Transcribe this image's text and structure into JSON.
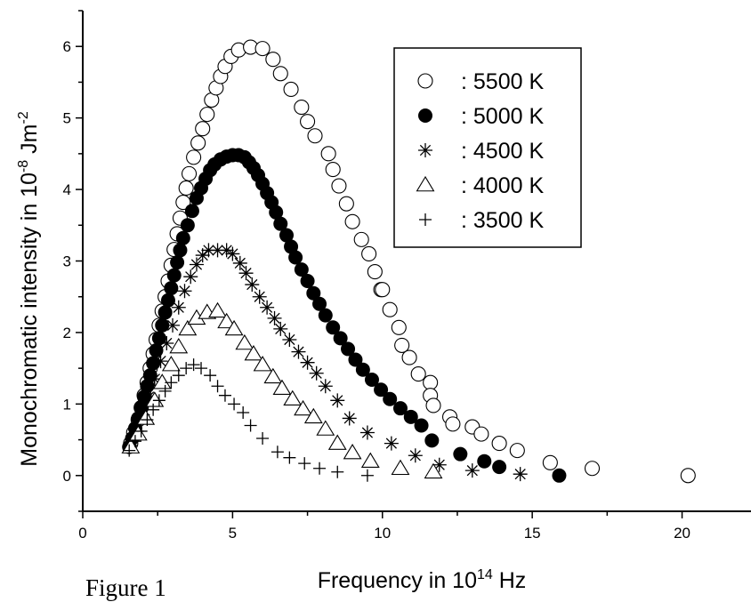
{
  "figure": {
    "caption": "Figure 1",
    "xlabel": {
      "main": "Frequency in 10",
      "exp": "14",
      "unit": " Hz"
    },
    "ylabel": {
      "main": "Monochromatic intensity in 10",
      "exp": "-8",
      "unit": " Jm",
      "unit_exp": "-2"
    }
  },
  "chart_data": {
    "type": "scatter",
    "xlim": [
      0,
      22.3
    ],
    "ylim": [
      -0.5,
      6.5
    ],
    "xticks": [
      0,
      5,
      10,
      15,
      20
    ],
    "yticks": [
      0,
      1,
      2,
      3,
      4,
      5,
      6
    ],
    "grid": false,
    "legend_position": "top-right",
    "series": [
      {
        "name": ": 5500 K",
        "marker": "open-circle",
        "points": [
          [
            1.6,
            0.45
          ],
          [
            1.7,
            0.6
          ],
          [
            1.85,
            0.78
          ],
          [
            1.95,
            0.95
          ],
          [
            2.05,
            1.12
          ],
          [
            2.15,
            1.3
          ],
          [
            2.25,
            1.5
          ],
          [
            2.35,
            1.7
          ],
          [
            2.45,
            1.9
          ],
          [
            2.55,
            2.1
          ],
          [
            2.65,
            2.3
          ],
          [
            2.75,
            2.5
          ],
          [
            2.85,
            2.72
          ],
          [
            2.95,
            2.94
          ],
          [
            3.05,
            3.16
          ],
          [
            3.15,
            3.38
          ],
          [
            3.25,
            3.6
          ],
          [
            3.35,
            3.82
          ],
          [
            3.45,
            4.02
          ],
          [
            3.55,
            4.22
          ],
          [
            3.7,
            4.45
          ],
          [
            3.85,
            4.65
          ],
          [
            4.0,
            4.85
          ],
          [
            4.15,
            5.05
          ],
          [
            4.3,
            5.25
          ],
          [
            4.45,
            5.42
          ],
          [
            4.6,
            5.58
          ],
          [
            4.75,
            5.72
          ],
          [
            4.95,
            5.86
          ],
          [
            5.2,
            5.95
          ],
          [
            5.6,
            5.99
          ],
          [
            6.0,
            5.97
          ],
          [
            6.35,
            5.82
          ],
          [
            6.6,
            5.62
          ],
          [
            6.95,
            5.4
          ],
          [
            7.3,
            5.15
          ],
          [
            7.5,
            4.95
          ],
          [
            7.75,
            4.75
          ],
          [
            8.2,
            4.5
          ],
          [
            8.35,
            4.28
          ],
          [
            8.55,
            4.05
          ],
          [
            8.8,
            3.8
          ],
          [
            9.0,
            3.55
          ],
          [
            9.3,
            3.3
          ],
          [
            9.55,
            3.1
          ],
          [
            9.75,
            2.85
          ],
          [
            9.95,
            2.6
          ],
          [
            10.0,
            2.6
          ],
          [
            10.25,
            2.32
          ],
          [
            10.55,
            2.07
          ],
          [
            10.65,
            1.82
          ],
          [
            10.9,
            1.65
          ],
          [
            11.2,
            1.42
          ],
          [
            11.6,
            1.3
          ],
          [
            11.6,
            1.12
          ],
          [
            11.7,
            0.98
          ],
          [
            12.25,
            0.82
          ],
          [
            12.35,
            0.72
          ],
          [
            13.0,
            0.68
          ],
          [
            13.3,
            0.58
          ],
          [
            13.9,
            0.45
          ],
          [
            14.5,
            0.35
          ],
          [
            15.6,
            0.18
          ],
          [
            17.0,
            0.1
          ],
          [
            20.2,
            0.0
          ]
        ]
      },
      {
        "name": ": 5000 K",
        "marker": "filled-circle",
        "points": [
          [
            1.55,
            0.4
          ],
          [
            1.65,
            0.52
          ],
          [
            1.75,
            0.66
          ],
          [
            1.85,
            0.8
          ],
          [
            1.95,
            0.95
          ],
          [
            2.05,
            1.1
          ],
          [
            2.15,
            1.25
          ],
          [
            2.25,
            1.4
          ],
          [
            2.35,
            1.57
          ],
          [
            2.45,
            1.75
          ],
          [
            2.55,
            1.92
          ],
          [
            2.65,
            2.1
          ],
          [
            2.75,
            2.28
          ],
          [
            2.85,
            2.45
          ],
          [
            2.95,
            2.62
          ],
          [
            3.05,
            2.8
          ],
          [
            3.15,
            2.98
          ],
          [
            3.25,
            3.15
          ],
          [
            3.35,
            3.32
          ],
          [
            3.5,
            3.5
          ],
          [
            3.65,
            3.7
          ],
          [
            3.8,
            3.88
          ],
          [
            3.95,
            4.02
          ],
          [
            4.1,
            4.15
          ],
          [
            4.25,
            4.27
          ],
          [
            4.4,
            4.35
          ],
          [
            4.6,
            4.42
          ],
          [
            4.8,
            4.46
          ],
          [
            5.0,
            4.48
          ],
          [
            5.2,
            4.48
          ],
          [
            5.4,
            4.45
          ],
          [
            5.55,
            4.38
          ],
          [
            5.7,
            4.3
          ],
          [
            5.85,
            4.2
          ],
          [
            6.0,
            4.08
          ],
          [
            6.15,
            3.95
          ],
          [
            6.3,
            3.82
          ],
          [
            6.45,
            3.68
          ],
          [
            6.6,
            3.52
          ],
          [
            6.8,
            3.36
          ],
          [
            6.95,
            3.2
          ],
          [
            7.1,
            3.05
          ],
          [
            7.3,
            2.88
          ],
          [
            7.5,
            2.72
          ],
          [
            7.7,
            2.55
          ],
          [
            7.9,
            2.4
          ],
          [
            8.1,
            2.24
          ],
          [
            8.35,
            2.07
          ],
          [
            8.6,
            1.92
          ],
          [
            8.85,
            1.77
          ],
          [
            9.1,
            1.62
          ],
          [
            9.35,
            1.48
          ],
          [
            9.65,
            1.34
          ],
          [
            9.95,
            1.2
          ],
          [
            10.25,
            1.07
          ],
          [
            10.6,
            0.94
          ],
          [
            10.95,
            0.82
          ],
          [
            11.3,
            0.7
          ],
          [
            11.65,
            0.49
          ],
          [
            12.6,
            0.3
          ],
          [
            13.4,
            0.2
          ],
          [
            13.9,
            0.12
          ],
          [
            15.9,
            0.0
          ]
        ]
      },
      {
        "name": ": 4500 K",
        "marker": "asterisk",
        "points": [
          [
            1.6,
            0.42
          ],
          [
            1.8,
            0.62
          ],
          [
            2.0,
            0.85
          ],
          [
            2.2,
            1.1
          ],
          [
            2.4,
            1.35
          ],
          [
            2.6,
            1.6
          ],
          [
            2.8,
            1.85
          ],
          [
            3.0,
            2.1
          ],
          [
            3.2,
            2.35
          ],
          [
            3.4,
            2.58
          ],
          [
            3.6,
            2.78
          ],
          [
            3.8,
            2.95
          ],
          [
            4.0,
            3.08
          ],
          [
            4.2,
            3.15
          ],
          [
            4.5,
            3.15
          ],
          [
            4.8,
            3.15
          ],
          [
            5.0,
            3.1
          ],
          [
            5.25,
            2.97
          ],
          [
            5.45,
            2.83
          ],
          [
            5.65,
            2.67
          ],
          [
            5.9,
            2.5
          ],
          [
            6.15,
            2.35
          ],
          [
            6.4,
            2.2
          ],
          [
            6.6,
            2.05
          ],
          [
            6.9,
            1.9
          ],
          [
            7.2,
            1.73
          ],
          [
            7.5,
            1.58
          ],
          [
            7.8,
            1.43
          ],
          [
            8.1,
            1.25
          ],
          [
            8.5,
            1.05
          ],
          [
            8.9,
            0.8
          ],
          [
            9.5,
            0.6
          ],
          [
            10.3,
            0.45
          ],
          [
            11.1,
            0.28
          ],
          [
            11.9,
            0.15
          ],
          [
            13.0,
            0.07
          ],
          [
            14.6,
            0.02
          ]
        ]
      },
      {
        "name": ": 4000 K",
        "marker": "open-triangle",
        "points": [
          [
            1.6,
            0.4
          ],
          [
            1.85,
            0.58
          ],
          [
            2.1,
            0.8
          ],
          [
            2.4,
            1.05
          ],
          [
            2.65,
            1.3
          ],
          [
            2.95,
            1.55
          ],
          [
            3.2,
            1.8
          ],
          [
            3.5,
            2.05
          ],
          [
            3.8,
            2.2
          ],
          [
            4.15,
            2.28
          ],
          [
            4.5,
            2.3
          ],
          [
            4.8,
            2.15
          ],
          [
            5.05,
            2.05
          ],
          [
            5.4,
            1.85
          ],
          [
            5.7,
            1.7
          ],
          [
            6.0,
            1.55
          ],
          [
            6.35,
            1.38
          ],
          [
            6.65,
            1.22
          ],
          [
            7.0,
            1.07
          ],
          [
            7.35,
            0.93
          ],
          [
            7.7,
            0.82
          ],
          [
            8.1,
            0.65
          ],
          [
            8.5,
            0.45
          ],
          [
            9.0,
            0.32
          ],
          [
            9.6,
            0.2
          ],
          [
            10.6,
            0.1
          ],
          [
            11.7,
            0.05
          ]
        ]
      },
      {
        "name": ": 3500 K",
        "marker": "plus",
        "points": [
          [
            1.55,
            0.35
          ],
          [
            1.75,
            0.48
          ],
          [
            1.95,
            0.62
          ],
          [
            2.15,
            0.78
          ],
          [
            2.35,
            0.92
          ],
          [
            2.55,
            1.05
          ],
          [
            2.75,
            1.18
          ],
          [
            2.95,
            1.3
          ],
          [
            3.2,
            1.4
          ],
          [
            3.45,
            1.5
          ],
          [
            3.7,
            1.55
          ],
          [
            3.95,
            1.5
          ],
          [
            4.25,
            1.4
          ],
          [
            4.5,
            1.25
          ],
          [
            4.75,
            1.12
          ],
          [
            5.05,
            1.0
          ],
          [
            5.35,
            0.88
          ],
          [
            5.6,
            0.7
          ],
          [
            6.0,
            0.52
          ],
          [
            6.5,
            0.33
          ],
          [
            6.9,
            0.25
          ],
          [
            7.4,
            0.17
          ],
          [
            7.9,
            0.1
          ],
          [
            8.5,
            0.05
          ],
          [
            9.5,
            0.0
          ]
        ]
      }
    ]
  }
}
